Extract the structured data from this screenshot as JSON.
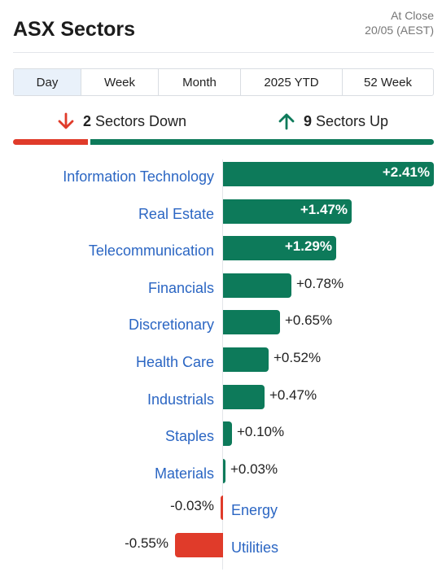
{
  "header": {
    "title": "ASX Sectors",
    "status": "At Close",
    "timestamp": "20/05 (AEST)"
  },
  "tabs": [
    {
      "label": "Day",
      "active": true
    },
    {
      "label": "Week",
      "active": false
    },
    {
      "label": "Month",
      "active": false
    },
    {
      "label": "2025 YTD",
      "active": false
    },
    {
      "label": "52 Week",
      "active": false
    }
  ],
  "summary": {
    "down_count": "2",
    "down_label": "Sectors Down",
    "up_count": "9",
    "up_label": "Sectors Up",
    "down_icon": "arrow-down-icon",
    "up_icon": "arrow-up-icon",
    "down_color": "#e03b2a",
    "up_color": "#0d7a5a"
  },
  "chart_data": {
    "type": "bar",
    "orientation": "horizontal",
    "categories": [
      "Information Technology",
      "Real Estate",
      "Telecommunication",
      "Financials",
      "Discretionary",
      "Health Care",
      "Industrials",
      "Staples",
      "Materials",
      "Energy",
      "Utilities"
    ],
    "values": [
      2.41,
      1.47,
      1.29,
      0.78,
      0.65,
      0.52,
      0.47,
      0.1,
      0.03,
      -0.03,
      -0.55
    ],
    "value_labels": [
      "+2.41%",
      "+1.47%",
      "+1.29%",
      "+0.78%",
      "+0.65%",
      "+0.52%",
      "+0.47%",
      "+0.10%",
      "+0.03%",
      "-0.03%",
      "-0.55%"
    ],
    "positive_color": "#0d7a5a",
    "negative_color": "#e03b2a"
  }
}
